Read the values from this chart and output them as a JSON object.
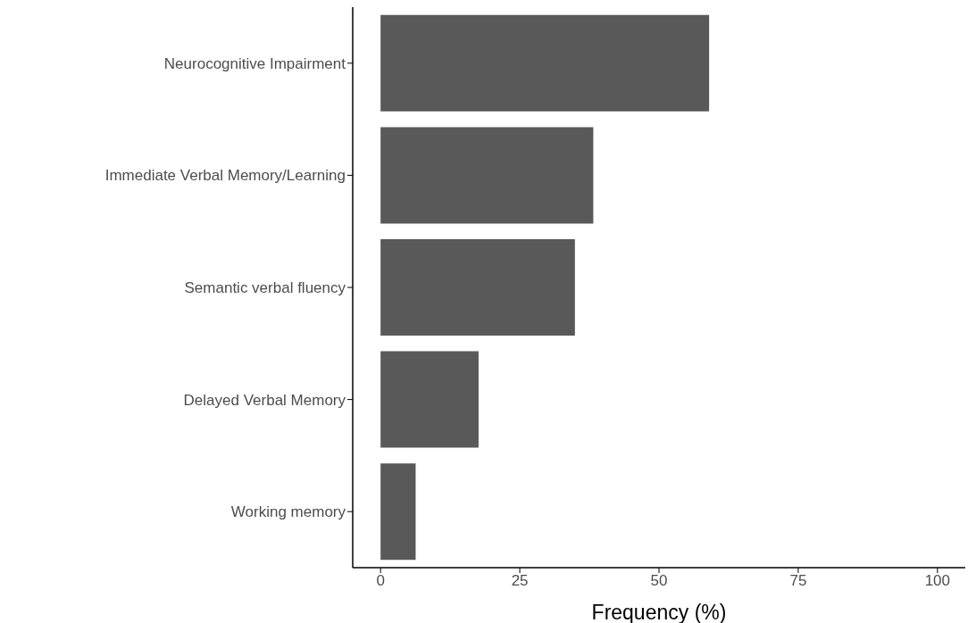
{
  "chart_data": {
    "type": "bar",
    "orientation": "horizontal",
    "xlabel": "Frequency (%)",
    "categories": [
      "Neurocognitive Impairment",
      "Immediate Verbal Memory/Learning",
      "Semantic verbal fluency",
      "Delayed Verbal Memory",
      "Working memory"
    ],
    "values": [
      59,
      38.2,
      34.9,
      17.6,
      6.3
    ],
    "color": "#595959",
    "xlim": [
      -5,
      105
    ],
    "xticks": [
      0,
      25,
      50,
      75,
      100
    ],
    "grid": false
  }
}
